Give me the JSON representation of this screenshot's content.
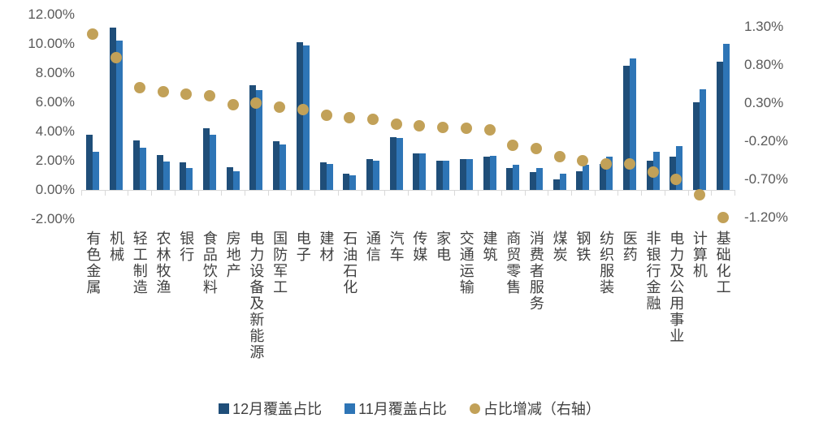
{
  "chart_data": {
    "type": "bar",
    "title": "",
    "categories": [
      "有色金属",
      "机械",
      "轻工制造",
      "农林牧渔",
      "银行",
      "食品饮料",
      "房地产",
      "电力设备及新能源",
      "国防军工",
      "电子",
      "建材",
      "石油石化",
      "通信",
      "汽车",
      "传媒",
      "家电",
      "交通运输",
      "建筑",
      "商贸零售",
      "消费者服务",
      "煤炭",
      "钢铁",
      "纺织服装",
      "医药",
      "非银行金融",
      "电力及公用事业",
      "计算机",
      "基础化工"
    ],
    "series": [
      {
        "name": "12月覆盖占比",
        "type": "bar",
        "axis": "left",
        "color": "#1F4E79",
        "unit": "%",
        "values": [
          3.8,
          11.1,
          3.4,
          2.4,
          1.9,
          4.2,
          1.55,
          7.15,
          3.35,
          10.1,
          1.9,
          1.1,
          2.1,
          3.6,
          2.5,
          2.0,
          2.1,
          2.3,
          1.5,
          1.2,
          0.7,
          1.3,
          1.8,
          8.5,
          2.0,
          2.3,
          6.0,
          8.8
        ]
      },
      {
        "name": "11月覆盖占比",
        "type": "bar",
        "axis": "left",
        "color": "#2E75B6",
        "unit": "%",
        "values": [
          2.6,
          10.2,
          2.9,
          1.95,
          1.48,
          3.8,
          1.27,
          6.85,
          3.1,
          9.88,
          1.76,
          0.99,
          2.01,
          3.58,
          2.5,
          2.02,
          2.13,
          2.35,
          1.75,
          1.5,
          1.1,
          1.75,
          2.3,
          9.0,
          2.6,
          3.0,
          6.9,
          10.0
        ]
      },
      {
        "name": "占比增减（右轴）",
        "type": "scatter",
        "axis": "right",
        "color": "#C2A158",
        "unit": "%",
        "values": [
          1.2,
          0.9,
          0.5,
          0.45,
          0.42,
          0.4,
          0.28,
          0.3,
          0.25,
          0.22,
          0.14,
          0.11,
          0.09,
          0.02,
          0.0,
          -0.02,
          -0.03,
          -0.05,
          -0.25,
          -0.3,
          -0.4,
          -0.45,
          -0.5,
          -0.5,
          -0.6,
          -0.7,
          -0.9,
          -1.2
        ]
      }
    ],
    "left_axis": {
      "ticks": [
        "12.00%",
        "10.00%",
        "8.00%",
        "6.00%",
        "4.00%",
        "2.00%",
        "0.00%",
        "-2.00%"
      ],
      "max": 12,
      "min": -2,
      "unit": "%"
    },
    "right_axis": {
      "ticks": [
        "1.30%",
        "0.80%",
        "0.30%",
        "-0.20%",
        "-0.70%",
        "-1.20%"
      ],
      "max": 1.3,
      "min": -1.2,
      "unit": "%"
    },
    "grid": false,
    "legend_position": "bottom"
  }
}
